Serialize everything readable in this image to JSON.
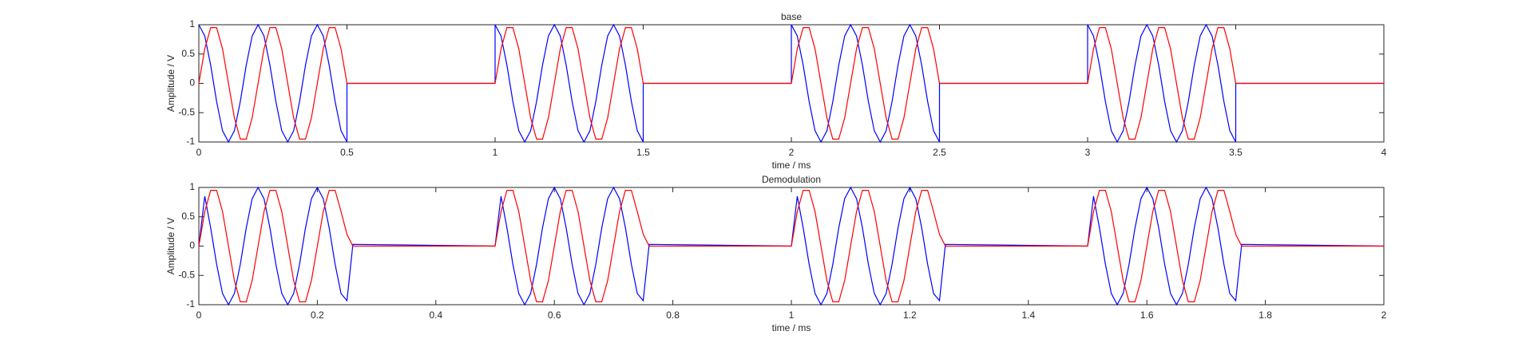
{
  "chart_data": [
    {
      "type": "line",
      "title": "base",
      "xlabel": "time / ms",
      "ylabel": "Amplitude / V",
      "xlim": [
        0,
        4
      ],
      "ylim": [
        -1,
        1
      ],
      "xticks": [
        0,
        0.5,
        1,
        1.5,
        2,
        2.5,
        3,
        3.5,
        4
      ],
      "yticks": [
        -1,
        -0.5,
        0,
        0.5,
        1
      ],
      "x": [
        0,
        0.02,
        0.04,
        0.06,
        0.08,
        0.1,
        0.12,
        0.14,
        0.16,
        0.18,
        0.2,
        0.22,
        0.24,
        0.26,
        0.28,
        0.3,
        0.32,
        0.34,
        0.36,
        0.38,
        0.4,
        0.42,
        0.44,
        0.46,
        0.48,
        0.5,
        0.5,
        1,
        1,
        1.02,
        1.04,
        1.06,
        1.08,
        1.1,
        1.12,
        1.14,
        1.16,
        1.18,
        1.2,
        1.22,
        1.24,
        1.26,
        1.28,
        1.3,
        1.32,
        1.34,
        1.36,
        1.38,
        1.4,
        1.42,
        1.44,
        1.46,
        1.48,
        1.5,
        1.5,
        2,
        2,
        2.02,
        2.04,
        2.06,
        2.08,
        2.1,
        2.12,
        2.14,
        2.16,
        2.18,
        2.2,
        2.22,
        2.24,
        2.26,
        2.28,
        2.3,
        2.32,
        2.34,
        2.36,
        2.38,
        2.4,
        2.42,
        2.44,
        2.46,
        2.48,
        2.5,
        2.5,
        3,
        3,
        3.02,
        3.04,
        3.06,
        3.08,
        3.1,
        3.12,
        3.14,
        3.16,
        3.18,
        3.2,
        3.22,
        3.24,
        3.26,
        3.28,
        3.3,
        3.32,
        3.34,
        3.36,
        3.38,
        3.4,
        3.42,
        3.44,
        3.46,
        3.48,
        3.5,
        3.5,
        4
      ],
      "series": [
        {
          "color": "#0000ff",
          "values": [
            1,
            0.809,
            0.309,
            -0.309,
            -0.809,
            -1,
            -0.809,
            -0.309,
            0.309,
            0.809,
            1,
            0.809,
            0.309,
            -0.309,
            -0.809,
            -1,
            -0.809,
            -0.309,
            0.309,
            0.809,
            1,
            0.809,
            0.309,
            -0.309,
            -0.809,
            -1,
            0,
            0,
            1,
            0.809,
            0.309,
            -0.309,
            -0.809,
            -1,
            -0.809,
            -0.309,
            0.309,
            0.809,
            1,
            0.809,
            0.309,
            -0.309,
            -0.809,
            -1,
            -0.809,
            -0.309,
            0.309,
            0.809,
            1,
            0.809,
            0.309,
            -0.309,
            -0.809,
            -1,
            0,
            0,
            1,
            0.809,
            0.309,
            -0.309,
            -0.809,
            -1,
            -0.809,
            -0.309,
            0.309,
            0.809,
            1,
            0.809,
            0.309,
            -0.309,
            -0.809,
            -1,
            -0.809,
            -0.309,
            0.309,
            0.809,
            1,
            0.809,
            0.309,
            -0.309,
            -0.809,
            -1,
            0,
            0,
            1,
            0.809,
            0.309,
            -0.309,
            -0.809,
            -1,
            -0.809,
            -0.309,
            0.309,
            0.809,
            1,
            0.809,
            0.309,
            -0.309,
            -0.809,
            -1,
            -0.809,
            -0.309,
            0.309,
            0.809,
            1,
            0.809,
            0.309,
            -0.309,
            -0.809,
            -1,
            0,
            0
          ]
        },
        {
          "color": "#ff0000",
          "values": [
            0,
            0.588,
            0.951,
            0.951,
            0.588,
            0,
            -0.588,
            -0.951,
            -0.951,
            -0.588,
            0,
            0.588,
            0.951,
            0.951,
            0.588,
            0,
            -0.588,
            -0.951,
            -0.951,
            -0.588,
            0,
            0.588,
            0.951,
            0.951,
            0.588,
            0,
            0,
            0,
            0,
            0.588,
            0.951,
            0.951,
            0.588,
            0,
            -0.588,
            -0.951,
            -0.951,
            -0.588,
            0,
            0.588,
            0.951,
            0.951,
            0.588,
            0,
            -0.588,
            -0.951,
            -0.951,
            -0.588,
            0,
            0.588,
            0.951,
            0.951,
            0.588,
            0,
            0,
            0,
            0,
            0.588,
            0.951,
            0.951,
            0.588,
            0,
            -0.588,
            -0.951,
            -0.951,
            -0.588,
            0,
            0.588,
            0.951,
            0.951,
            0.588,
            0,
            -0.588,
            -0.951,
            -0.951,
            -0.588,
            0,
            0.588,
            0.951,
            0.951,
            0.588,
            0,
            0,
            0,
            0,
            0.588,
            0.951,
            0.951,
            0.588,
            0,
            -0.588,
            -0.951,
            -0.951,
            -0.588,
            0,
            0.588,
            0.951,
            0.951,
            0.588,
            0,
            -0.588,
            -0.951,
            -0.951,
            -0.588,
            0,
            0.588,
            0.951,
            0.951,
            0.588,
            0,
            0,
            0
          ]
        }
      ]
    },
    {
      "type": "line",
      "title": "Demodulation",
      "xlabel": "time / ms",
      "ylabel": "Amplitude / V",
      "xlim": [
        0,
        2
      ],
      "ylim": [
        -1,
        1
      ],
      "xticks": [
        0,
        0.2,
        0.4,
        0.6,
        0.8,
        1,
        1.2,
        1.4,
        1.6,
        1.8,
        2
      ],
      "yticks": [
        -1,
        -0.5,
        0,
        0.5,
        1
      ],
      "x": [
        0,
        0.01,
        0.02,
        0.03,
        0.04,
        0.05,
        0.06,
        0.07,
        0.08,
        0.09,
        0.1,
        0.11,
        0.12,
        0.13,
        0.14,
        0.15,
        0.16,
        0.17,
        0.18,
        0.19,
        0.2,
        0.21,
        0.22,
        0.23,
        0.24,
        0.25,
        0.26,
        0.5,
        0.51,
        0.52,
        0.53,
        0.54,
        0.55,
        0.56,
        0.57,
        0.58,
        0.59,
        0.6,
        0.61,
        0.62,
        0.63,
        0.64,
        0.65,
        0.66,
        0.67,
        0.68,
        0.69,
        0.7,
        0.71,
        0.72,
        0.73,
        0.74,
        0.75,
        0.76,
        1,
        1.01,
        1.02,
        1.03,
        1.04,
        1.05,
        1.06,
        1.07,
        1.08,
        1.09,
        1.1,
        1.11,
        1.12,
        1.13,
        1.14,
        1.15,
        1.16,
        1.17,
        1.18,
        1.19,
        1.2,
        1.21,
        1.22,
        1.23,
        1.24,
        1.25,
        1.26,
        1.5,
        1.51,
        1.52,
        1.53,
        1.54,
        1.55,
        1.56,
        1.57,
        1.58,
        1.59,
        1.6,
        1.61,
        1.62,
        1.63,
        1.64,
        1.65,
        1.66,
        1.67,
        1.68,
        1.69,
        1.7,
        1.71,
        1.72,
        1.73,
        1.74,
        1.75,
        1.76,
        2
      ],
      "series": [
        {
          "color": "#0000ff",
          "values": [
            0,
            0.85,
            0.309,
            -0.309,
            -0.809,
            -1,
            -0.809,
            -0.309,
            0.309,
            0.809,
            1,
            0.809,
            0.309,
            -0.309,
            -0.809,
            -1,
            -0.809,
            -0.309,
            0.309,
            0.809,
            1,
            0.809,
            0.309,
            -0.309,
            -0.809,
            -0.93,
            0.03,
            0,
            0.85,
            0.309,
            -0.309,
            -0.809,
            -1,
            -0.809,
            -0.309,
            0.309,
            0.809,
            1,
            0.809,
            0.309,
            -0.309,
            -0.809,
            -1,
            -0.809,
            -0.309,
            0.309,
            0.809,
            1,
            0.809,
            0.309,
            -0.309,
            -0.809,
            -0.93,
            0.03,
            0,
            0.85,
            0.309,
            -0.309,
            -0.809,
            -1,
            -0.809,
            -0.309,
            0.309,
            0.809,
            1,
            0.809,
            0.309,
            -0.309,
            -0.809,
            -1,
            -0.809,
            -0.309,
            0.309,
            0.809,
            1,
            0.809,
            0.309,
            -0.309,
            -0.809,
            -0.93,
            0.03,
            0,
            0.85,
            0.309,
            -0.309,
            -0.809,
            -1,
            -0.809,
            -0.309,
            0.309,
            0.809,
            1,
            0.809,
            0.309,
            -0.309,
            -0.809,
            -1,
            -0.809,
            -0.309,
            0.309,
            0.809,
            1,
            0.809,
            0.309,
            -0.309,
            -0.809,
            -0.93,
            0.03,
            0
          ]
        },
        {
          "color": "#ff0000",
          "values": [
            0,
            0.588,
            0.951,
            0.951,
            0.588,
            0,
            -0.588,
            -0.951,
            -0.951,
            -0.588,
            0,
            0.588,
            0.951,
            0.951,
            0.588,
            0,
            -0.588,
            -0.951,
            -0.951,
            -0.588,
            0,
            0.588,
            0.951,
            0.951,
            0.588,
            0.2,
            0,
            0,
            0.588,
            0.951,
            0.951,
            0.588,
            0,
            -0.588,
            -0.951,
            -0.951,
            -0.588,
            0,
            0.588,
            0.951,
            0.951,
            0.588,
            0,
            -0.588,
            -0.951,
            -0.951,
            -0.588,
            0,
            0.588,
            0.951,
            0.951,
            0.588,
            0.2,
            0,
            0,
            0.588,
            0.951,
            0.951,
            0.588,
            0,
            -0.588,
            -0.951,
            -0.951,
            -0.588,
            0,
            0.588,
            0.951,
            0.951,
            0.588,
            0,
            -0.588,
            -0.951,
            -0.951,
            -0.588,
            0,
            0.588,
            0.951,
            0.951,
            0.588,
            0.2,
            0,
            0,
            0.588,
            0.951,
            0.951,
            0.588,
            0,
            -0.588,
            -0.951,
            -0.951,
            -0.588,
            0,
            0.588,
            0.951,
            0.951,
            0.588,
            0,
            -0.588,
            -0.951,
            -0.951,
            -0.588,
            0,
            0.588,
            0.951,
            0.951,
            0.588,
            0.2,
            0,
            0
          ]
        }
      ]
    }
  ]
}
